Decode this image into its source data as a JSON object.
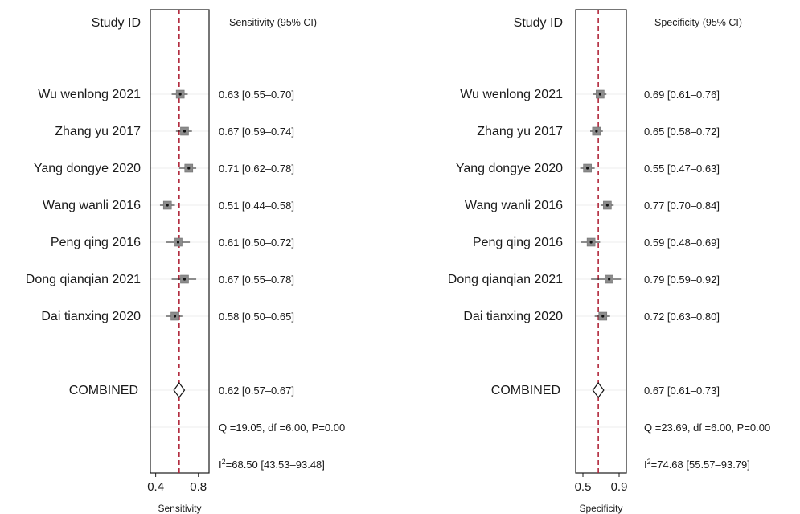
{
  "chart_data": [
    {
      "type": "forest",
      "study_header": "Study ID",
      "value_header": "Sensitivity (95% CI)",
      "xlabel": "Sensitivity",
      "xlim": [
        0.35,
        0.9
      ],
      "xticks": [
        0.4,
        0.8
      ],
      "reference_line": 0.62,
      "studies": [
        {
          "name": "Wu wenlong 2021",
          "estimate": 0.63,
          "ci": [
            0.55,
            0.7
          ],
          "label": "0.63 [0.55–0.70]"
        },
        {
          "name": "Zhang yu 2017",
          "estimate": 0.67,
          "ci": [
            0.59,
            0.74
          ],
          "label": "0.67 [0.59–0.74]"
        },
        {
          "name": "Yang dongye 2020",
          "estimate": 0.71,
          "ci": [
            0.62,
            0.78
          ],
          "label": "0.71 [0.62–0.78]"
        },
        {
          "name": "Wang wanli 2016",
          "estimate": 0.51,
          "ci": [
            0.44,
            0.58
          ],
          "label": "0.51 [0.44–0.58]"
        },
        {
          "name": "Peng qing 2016",
          "estimate": 0.61,
          "ci": [
            0.5,
            0.72
          ],
          "label": "0.61 [0.50–0.72]"
        },
        {
          "name": "Dong qianqian 2021",
          "estimate": 0.67,
          "ci": [
            0.55,
            0.78
          ],
          "label": "0.67 [0.55–0.78]"
        },
        {
          "name": "Dai tianxing 2020",
          "estimate": 0.58,
          "ci": [
            0.5,
            0.65
          ],
          "label": "0.58 [0.50–0.65]"
        }
      ],
      "combined": {
        "name": "COMBINED",
        "estimate": 0.62,
        "ci": [
          0.57,
          0.67
        ],
        "label": "0.62 [0.57–0.67]"
      },
      "heterogeneity": "Q =19.05, df =6.00, P=0.00",
      "i2_prefix": "I",
      "i2_sup": "2",
      "i2_rest": "=68.50 [43.53–93.48]"
    },
    {
      "type": "forest",
      "study_header": "Study ID",
      "value_header": "Specificity (95% CI)",
      "xlabel": "Specificity",
      "xlim": [
        0.42,
        0.98
      ],
      "xticks": [
        0.5,
        0.9
      ],
      "reference_line": 0.67,
      "studies": [
        {
          "name": "Wu wenlong 2021",
          "estimate": 0.69,
          "ci": [
            0.61,
            0.76
          ],
          "label": "0.69 [0.61–0.76]"
        },
        {
          "name": "Zhang yu 2017",
          "estimate": 0.65,
          "ci": [
            0.58,
            0.72
          ],
          "label": "0.65 [0.58–0.72]"
        },
        {
          "name": "Yang dongye 2020",
          "estimate": 0.55,
          "ci": [
            0.47,
            0.63
          ],
          "label": "0.55 [0.47–0.63]"
        },
        {
          "name": "Wang wanli 2016",
          "estimate": 0.77,
          "ci": [
            0.7,
            0.84
          ],
          "label": "0.77 [0.70–0.84]"
        },
        {
          "name": "Peng qing 2016",
          "estimate": 0.59,
          "ci": [
            0.48,
            0.69
          ],
          "label": "0.59 [0.48–0.69]"
        },
        {
          "name": "Dong qianqian 2021",
          "estimate": 0.79,
          "ci": [
            0.59,
            0.92
          ],
          "label": "0.79 [0.59–0.92]"
        },
        {
          "name": "Dai tianxing 2020",
          "estimate": 0.72,
          "ci": [
            0.63,
            0.8
          ],
          "label": "0.72 [0.63–0.80]"
        }
      ],
      "combined": {
        "name": "COMBINED",
        "estimate": 0.67,
        "ci": [
          0.61,
          0.73
        ],
        "label": "0.67 [0.61–0.73]"
      },
      "heterogeneity": "Q =23.69, df =6.00, P=0.00",
      "i2_prefix": "I",
      "i2_sup": "2",
      "i2_rest": "=74.68 [55.57–93.79]"
    }
  ],
  "colors": {
    "reference_line": "#b0263a",
    "square_fill": "#8c8c8c",
    "ci_line": "#1a1a1a",
    "gridline": "#ededed",
    "frame": "#1a1a1a"
  }
}
